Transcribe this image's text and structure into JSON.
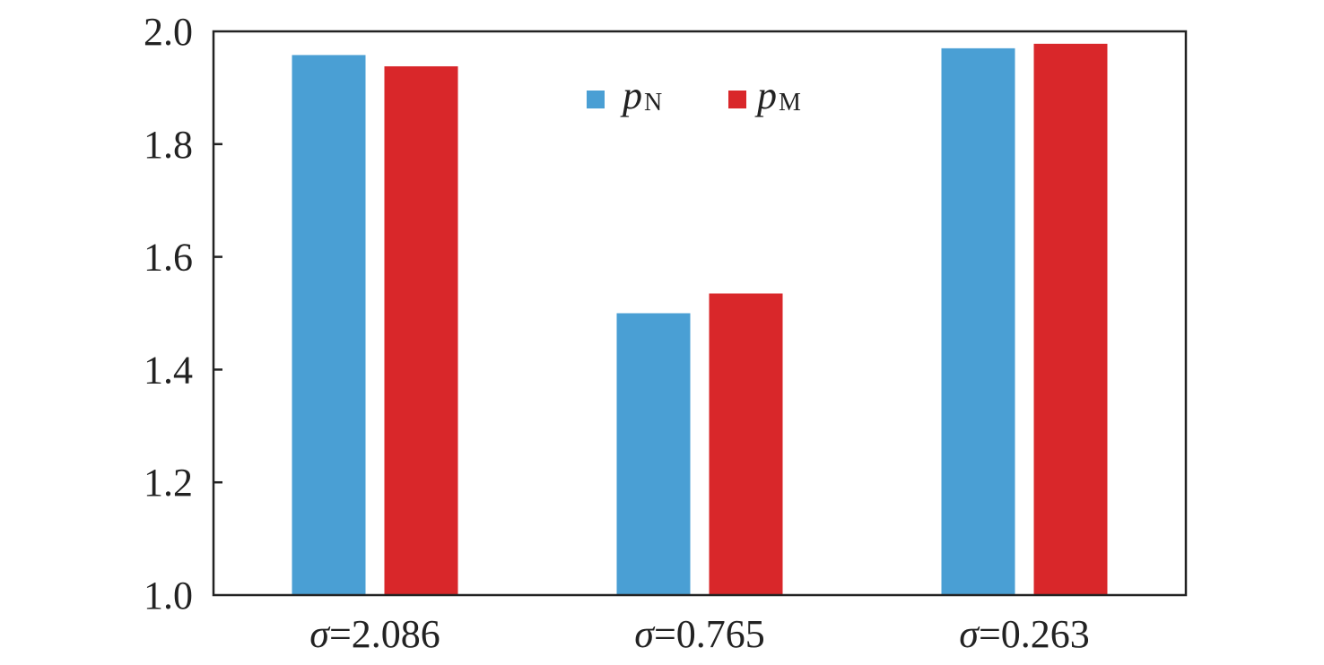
{
  "chart_data": {
    "type": "bar",
    "categories": [
      {
        "symbol": "σ",
        "rest": "=2.086"
      },
      {
        "symbol": "σ",
        "rest": "=0.765"
      },
      {
        "symbol": "σ",
        "rest": "=0.263"
      }
    ],
    "series": [
      {
        "name_main": "p",
        "name_sub": "N",
        "color": "#4a9fd4",
        "values": [
          1.958,
          1.5,
          1.97
        ]
      },
      {
        "name_main": "p",
        "name_sub": "M",
        "color": "#d9272a",
        "values": [
          1.938,
          1.535,
          1.978
        ]
      }
    ],
    "yticks": [
      "1.0",
      "1.2",
      "1.4",
      "1.6",
      "1.8",
      "2.0"
    ],
    "ylim": [
      1.0,
      2.0
    ],
    "legend_position": "top-center",
    "grid": false
  }
}
